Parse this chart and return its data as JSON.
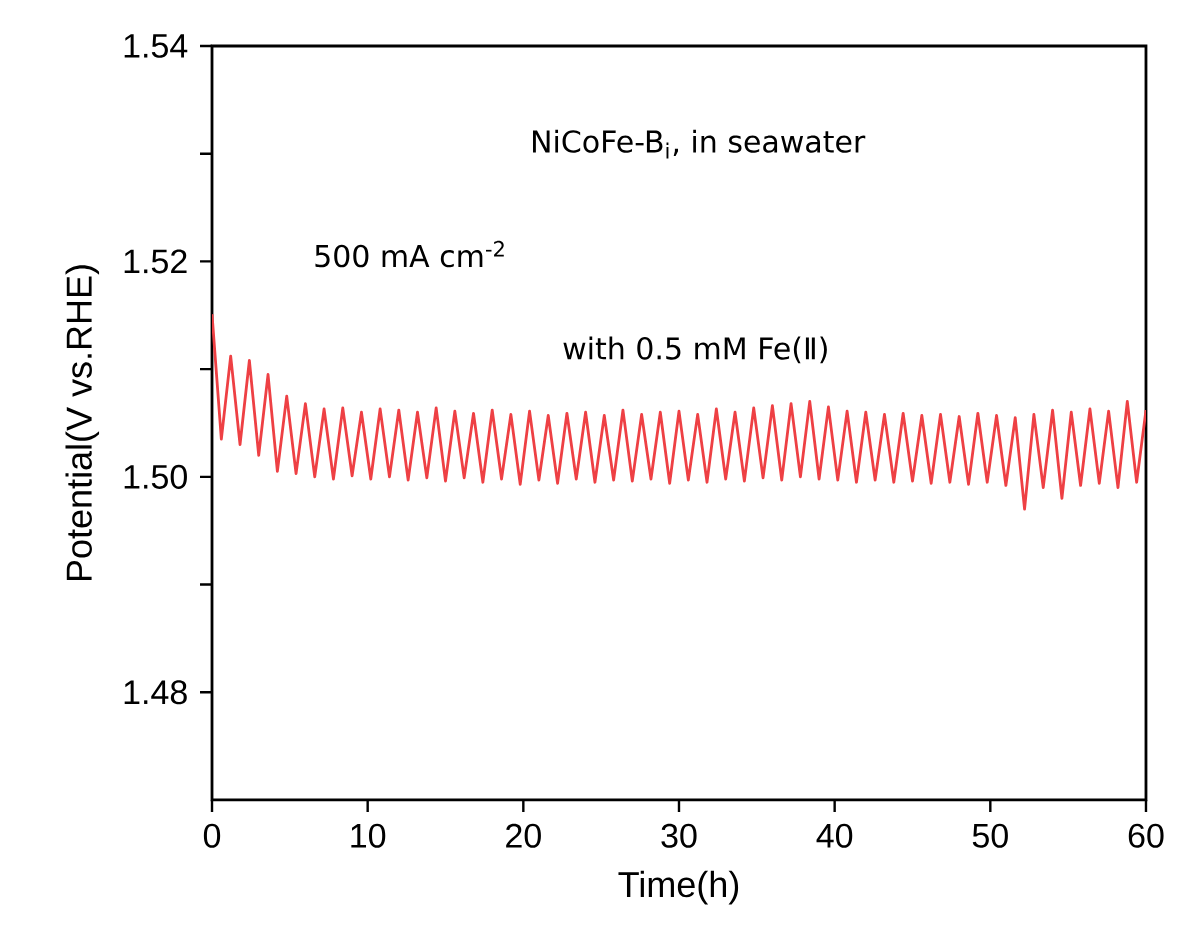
{
  "chart_data": {
    "type": "line",
    "xlabel": "Time(h)",
    "ylabel": "Potential(V vs.RHE)",
    "annotations": [
      "NiCoFe-B$_{i}$, in seawater",
      "500 mA cm$^{-2}$",
      "with 0.5 mM Fe(Ⅱ)"
    ],
    "xlim": [
      0,
      60
    ],
    "xticks": [
      0,
      10,
      20,
      30,
      40,
      50,
      60
    ],
    "ylim": [
      1.47,
      1.54
    ],
    "yticks": [
      1.48,
      {
        "value": 1.49,
        "label": null
      },
      {
        "value": 1.5,
        "label": "1.50"
      },
      {
        "value": 1.51,
        "label": null
      },
      1.52,
      {
        "value": 1.53,
        "label": null
      },
      1.54
    ],
    "grid": false,
    "marker": "none",
    "line_style": "solid",
    "series": [
      {
        "color": "#ee4044",
        "x": [
          0,
          0.6,
          1.2,
          1.8,
          2.4,
          3.0,
          3.6,
          4.2,
          4.8,
          5.4,
          6.0,
          6.6,
          7.2,
          7.8,
          8.4,
          9.0,
          9.6,
          10.2,
          10.8,
          11.4,
          12,
          12.6,
          13.2,
          13.8,
          14.4,
          15,
          15.6,
          16.2,
          16.8,
          17.4,
          18,
          18.6,
          19.2,
          19.8,
          20.4,
          21,
          21.6,
          22.2,
          22.8,
          23.4,
          24,
          24.6,
          25.2,
          25.8,
          26.4,
          27,
          27.6,
          28.2,
          28.8,
          29.4,
          30,
          30.6,
          31.2,
          31.8,
          32.4,
          33,
          33.6,
          34.2,
          34.8,
          35.4,
          36,
          36.6,
          37.2,
          37.8,
          38.4,
          39,
          39.6,
          40.2,
          40.8,
          41.4,
          42,
          42.6,
          43.2,
          43.8,
          44.4,
          45,
          45.6,
          46.2,
          46.8,
          47.4,
          48,
          48.6,
          49.2,
          49.8,
          50.4,
          51,
          51.6,
          52.2,
          52.8,
          53.4,
          54,
          54.6,
          55.2,
          55.8,
          56.4,
          57,
          57.6,
          58.2,
          58.8,
          59.4,
          60
        ],
        "values": [
          1.5151,
          1.5035,
          1.5112,
          1.503,
          1.5108,
          1.502,
          1.5095,
          1.5005,
          1.5075,
          1.5003,
          1.5068,
          1.5,
          1.5063,
          1.4998,
          1.5064,
          1.5001,
          1.506,
          1.4998,
          1.5063,
          1.5,
          1.5062,
          1.4997,
          1.506,
          1.4999,
          1.5064,
          1.4996,
          1.5061,
          1.4999,
          1.5059,
          1.4995,
          1.5062,
          1.4998,
          1.5058,
          1.4993,
          1.5061,
          1.4997,
          1.5057,
          1.4994,
          1.5059,
          1.4998,
          1.506,
          1.4995,
          1.5057,
          1.4997,
          1.5062,
          1.4996,
          1.5058,
          1.4998,
          1.506,
          1.4994,
          1.5061,
          1.4997,
          1.5058,
          1.4995,
          1.5063,
          1.4998,
          1.506,
          1.4996,
          1.5064,
          1.4999,
          1.5066,
          1.4997,
          1.5068,
          1.5,
          1.507,
          1.4998,
          1.5065,
          1.4997,
          1.5061,
          1.4995,
          1.506,
          1.4997,
          1.5058,
          1.4995,
          1.5059,
          1.4996,
          1.5057,
          1.4994,
          1.5058,
          1.4995,
          1.5056,
          1.4993,
          1.5059,
          1.4995,
          1.5057,
          1.4992,
          1.5055,
          1.497,
          1.5058,
          1.499,
          1.5062,
          1.498,
          1.506,
          1.4992,
          1.5063,
          1.4994,
          1.5061,
          1.499,
          1.507,
          1.4995,
          1.5062
        ]
      }
    ]
  }
}
